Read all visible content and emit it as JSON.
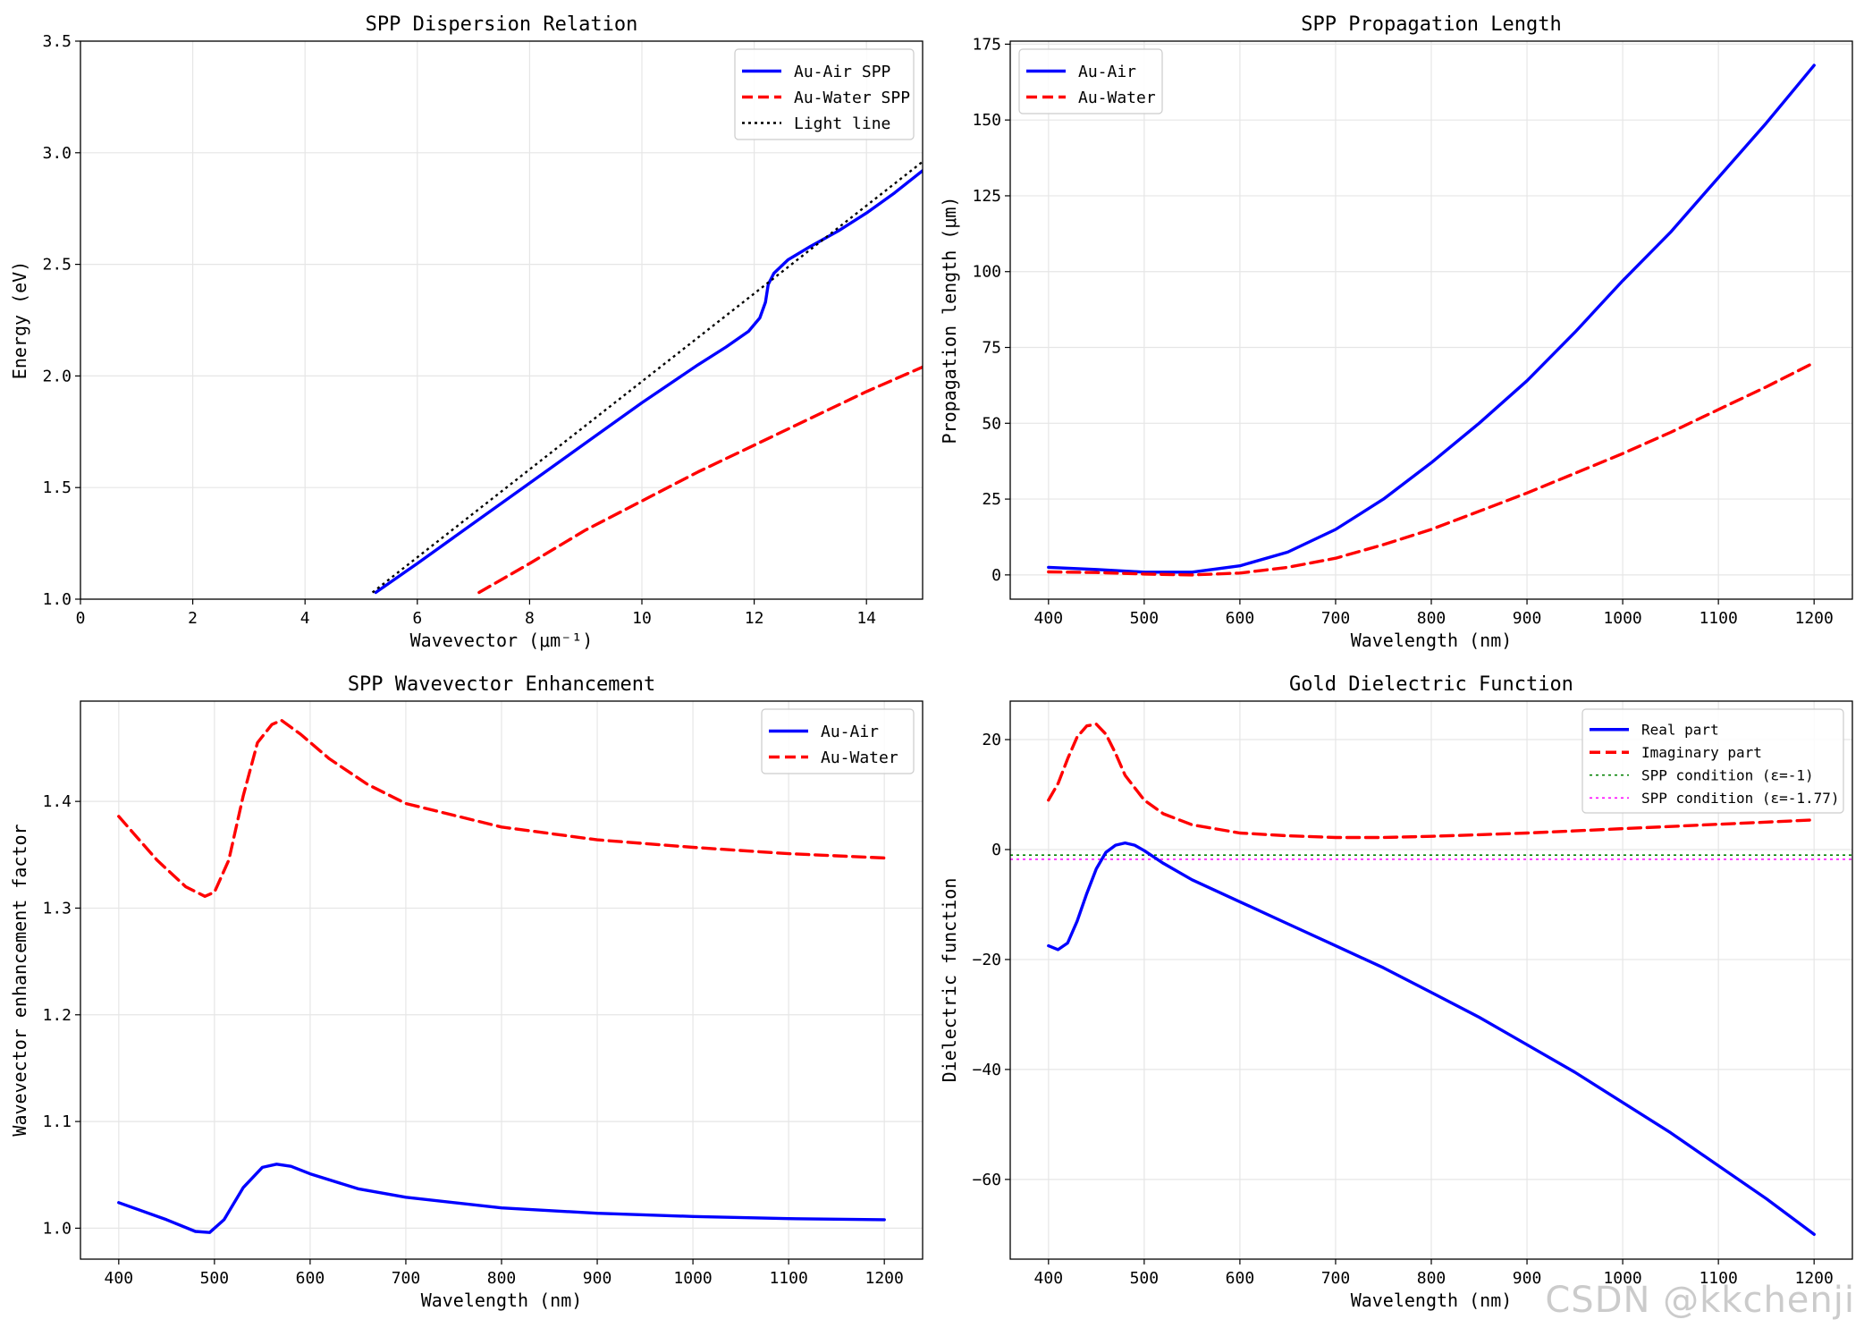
{
  "chart_data": [
    {
      "type": "line",
      "title": "SPP Dispersion Relation",
      "xlabel": "Wavevector (μm⁻¹)",
      "ylabel": "Energy (eV)",
      "xlim": [
        0,
        15
      ],
      "ylim": [
        1.0,
        3.5
      ],
      "xticks": [
        0,
        2,
        4,
        6,
        8,
        10,
        12,
        14
      ],
      "yticks": [
        1.0,
        1.5,
        2.0,
        2.5,
        3.0,
        3.5
      ],
      "tick_decimals": {
        "x": 0,
        "y": 1
      },
      "grid": true,
      "legend_position": "upper-right",
      "series": [
        {
          "name": "Au-Air SPP",
          "color": "#0000ff",
          "dash": "solid",
          "points": [
            [
              5.26,
              1.03
            ],
            [
              6,
              1.16
            ],
            [
              7,
              1.34
            ],
            [
              8,
              1.52
            ],
            [
              9,
              1.7
            ],
            [
              10,
              1.88
            ],
            [
              11,
              2.05
            ],
            [
              11.5,
              2.13
            ],
            [
              11.9,
              2.2
            ],
            [
              12.1,
              2.26
            ],
            [
              12.2,
              2.33
            ],
            [
              12.25,
              2.41
            ],
            [
              12.35,
              2.46
            ],
            [
              12.6,
              2.52
            ],
            [
              13,
              2.58
            ],
            [
              13.5,
              2.65
            ],
            [
              14,
              2.73
            ],
            [
              14.5,
              2.82
            ],
            [
              15,
              2.92
            ]
          ]
        },
        {
          "name": "Au-Water SPP",
          "color": "#ff0000",
          "dash": "dashed",
          "points": [
            [
              7.1,
              1.03
            ],
            [
              8,
              1.16
            ],
            [
              9,
              1.31
            ],
            [
              10,
              1.44
            ],
            [
              11,
              1.57
            ],
            [
              12,
              1.69
            ],
            [
              13,
              1.81
            ],
            [
              14,
              1.93
            ],
            [
              15,
              2.04
            ]
          ]
        },
        {
          "name": "Light line",
          "color": "#000000",
          "dash": "dotted",
          "points": [
            [
              5.2,
              1.03
            ],
            [
              15,
              2.96
            ]
          ]
        }
      ]
    },
    {
      "type": "line",
      "title": "SPP Propagation Length",
      "xlabel": "Wavelength (nm)",
      "ylabel": "Propagation length (μm)",
      "xlim": [
        360,
        1240
      ],
      "ylim": [
        -8,
        176
      ],
      "xticks": [
        400,
        500,
        600,
        700,
        800,
        900,
        1000,
        1100,
        1200
      ],
      "yticks": [
        0,
        25,
        50,
        75,
        100,
        125,
        150,
        175
      ],
      "tick_decimals": {
        "x": 0,
        "y": 0
      },
      "grid": true,
      "legend_position": "upper-left",
      "series": [
        {
          "name": "Au-Air",
          "color": "#0000ff",
          "dash": "solid",
          "points": [
            [
              400,
              2.5
            ],
            [
              450,
              1.8
            ],
            [
              500,
              0.9
            ],
            [
              550,
              0.9
            ],
            [
              600,
              3
            ],
            [
              650,
              7.5
            ],
            [
              700,
              15
            ],
            [
              750,
              25
            ],
            [
              800,
              37
            ],
            [
              850,
              50
            ],
            [
              900,
              64
            ],
            [
              950,
              80
            ],
            [
              1000,
              97
            ],
            [
              1050,
              113
            ],
            [
              1100,
              131
            ],
            [
              1150,
              149
            ],
            [
              1200,
              168
            ]
          ]
        },
        {
          "name": "Au-Water",
          "color": "#ff0000",
          "dash": "dashed",
          "points": [
            [
              400,
              1
            ],
            [
              450,
              0.8
            ],
            [
              500,
              0.3
            ],
            [
              550,
              0
            ],
            [
              600,
              0.6
            ],
            [
              650,
              2.5
            ],
            [
              700,
              5.5
            ],
            [
              750,
              10
            ],
            [
              800,
              15
            ],
            [
              850,
              21
            ],
            [
              900,
              27
            ],
            [
              950,
              33.5
            ],
            [
              1000,
              40
            ],
            [
              1050,
              47
            ],
            [
              1100,
              54.5
            ],
            [
              1150,
              62
            ],
            [
              1200,
              70
            ]
          ]
        }
      ]
    },
    {
      "type": "line",
      "title": "SPP Wavevector Enhancement",
      "xlabel": "Wavelength (nm)",
      "ylabel": "Wavevector enhancement factor",
      "xlim": [
        360,
        1240
      ],
      "ylim": [
        0.971,
        1.494
      ],
      "xticks": [
        400,
        500,
        600,
        700,
        800,
        900,
        1000,
        1100,
        1200
      ],
      "yticks": [
        1.0,
        1.1,
        1.2,
        1.3,
        1.4
      ],
      "tick_decimals": {
        "x": 0,
        "y": 1
      },
      "grid": true,
      "legend_position": "upper-right",
      "series": [
        {
          "name": "Au-Air",
          "color": "#0000ff",
          "dash": "solid",
          "points": [
            [
              400,
              1.024
            ],
            [
              450,
              1.008
            ],
            [
              480,
              0.997
            ],
            [
              495,
              0.996
            ],
            [
              510,
              1.008
            ],
            [
              530,
              1.038
            ],
            [
              550,
              1.057
            ],
            [
              565,
              1.06
            ],
            [
              580,
              1.058
            ],
            [
              600,
              1.051
            ],
            [
              650,
              1.037
            ],
            [
              700,
              1.029
            ],
            [
              800,
              1.019
            ],
            [
              900,
              1.014
            ],
            [
              1000,
              1.011
            ],
            [
              1100,
              1.009
            ],
            [
              1200,
              1.008
            ]
          ]
        },
        {
          "name": "Au-Water",
          "color": "#ff0000",
          "dash": "dashed",
          "points": [
            [
              400,
              1.386
            ],
            [
              440,
              1.345
            ],
            [
              470,
              1.32
            ],
            [
              490,
              1.311
            ],
            [
              500,
              1.315
            ],
            [
              515,
              1.345
            ],
            [
              530,
              1.405
            ],
            [
              545,
              1.455
            ],
            [
              560,
              1.472
            ],
            [
              570,
              1.476
            ],
            [
              590,
              1.463
            ],
            [
              620,
              1.44
            ],
            [
              660,
              1.416
            ],
            [
              700,
              1.398
            ],
            [
              800,
              1.376
            ],
            [
              900,
              1.364
            ],
            [
              1000,
              1.357
            ],
            [
              1100,
              1.351
            ],
            [
              1200,
              1.347
            ]
          ]
        }
      ]
    },
    {
      "type": "line",
      "title": "Gold Dielectric Function",
      "xlabel": "Wavelength (nm)",
      "ylabel": "Dielectric function",
      "xlim": [
        360,
        1240
      ],
      "ylim": [
        -74.5,
        27
      ],
      "xticks": [
        400,
        500,
        600,
        700,
        800,
        900,
        1000,
        1100,
        1200
      ],
      "yticks": [
        -60,
        -40,
        -20,
        0,
        20
      ],
      "tick_decimals": {
        "x": 0,
        "y": 0
      },
      "grid": true,
      "legend_position": "upper-right",
      "series": [
        {
          "name": "Real part",
          "color": "#0000ff",
          "dash": "solid",
          "points": [
            [
              400,
              -17.5
            ],
            [
              410,
              -18.2
            ],
            [
              420,
              -17
            ],
            [
              430,
              -13
            ],
            [
              440,
              -8
            ],
            [
              450,
              -3.5
            ],
            [
              460,
              -0.5
            ],
            [
              470,
              0.8
            ],
            [
              480,
              1.2
            ],
            [
              490,
              0.8
            ],
            [
              500,
              -0.2
            ],
            [
              520,
              -2.5
            ],
            [
              550,
              -5.5
            ],
            [
              600,
              -9.5
            ],
            [
              650,
              -13.5
            ],
            [
              700,
              -17.5
            ],
            [
              750,
              -21.5
            ],
            [
              800,
              -26
            ],
            [
              850,
              -30.5
            ],
            [
              900,
              -35.5
            ],
            [
              950,
              -40.5
            ],
            [
              1000,
              -46
            ],
            [
              1050,
              -51.5
            ],
            [
              1100,
              -57.5
            ],
            [
              1150,
              -63.5
            ],
            [
              1200,
              -70
            ]
          ]
        },
        {
          "name": "Imaginary part",
          "color": "#ff0000",
          "dash": "dashed",
          "points": [
            [
              400,
              9
            ],
            [
              410,
              12
            ],
            [
              420,
              16.5
            ],
            [
              430,
              20.5
            ],
            [
              440,
              22.5
            ],
            [
              450,
              22.8
            ],
            [
              460,
              21
            ],
            [
              470,
              17.5
            ],
            [
              480,
              13.5
            ],
            [
              500,
              9
            ],
            [
              520,
              6.5
            ],
            [
              550,
              4.5
            ],
            [
              600,
              3
            ],
            [
              650,
              2.5
            ],
            [
              700,
              2.2
            ],
            [
              750,
              2.2
            ],
            [
              800,
              2.4
            ],
            [
              850,
              2.7
            ],
            [
              900,
              3.0
            ],
            [
              950,
              3.4
            ],
            [
              1000,
              3.8
            ],
            [
              1050,
              4.2
            ],
            [
              1100,
              4.6
            ],
            [
              1150,
              5.0
            ],
            [
              1200,
              5.4
            ]
          ]
        }
      ],
      "hlines": [
        {
          "name": "SPP condition (ε=-1)",
          "y": -1,
          "color": "#008000",
          "dash": "dotted"
        },
        {
          "name": "SPP condition (ε=-1.77)",
          "y": -1.77,
          "color": "#ff00ff",
          "dash": "dotted"
        }
      ]
    }
  ],
  "watermark": "CSDN @kkchenji"
}
